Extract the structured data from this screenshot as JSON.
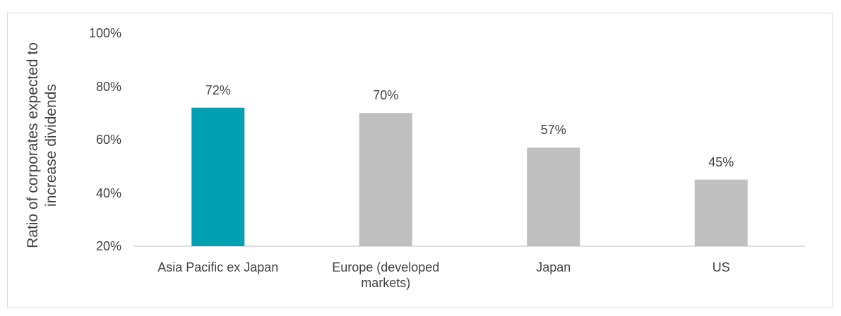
{
  "chart_data": {
    "type": "bar",
    "y_label": "Ratio of corporates expected to increase dividends",
    "categories": [
      "Asia Pacific ex Japan",
      "Europe (developed markets)",
      "Japan",
      "US"
    ],
    "values": [
      72,
      70,
      57,
      45
    ],
    "value_labels": [
      "72%",
      "70%",
      "57%",
      "45%"
    ],
    "colors": [
      "#00a0b2",
      "#bfbfbf",
      "#bfbfbf",
      "#bfbfbf"
    ],
    "ylim": [
      20,
      100
    ],
    "yticks": [
      {
        "value": 20,
        "label": "20%"
      },
      {
        "value": 40,
        "label": "40%"
      },
      {
        "value": 60,
        "label": "60%"
      },
      {
        "value": 80,
        "label": "80%"
      },
      {
        "value": 100,
        "label": "100%"
      }
    ],
    "grid": false
  }
}
